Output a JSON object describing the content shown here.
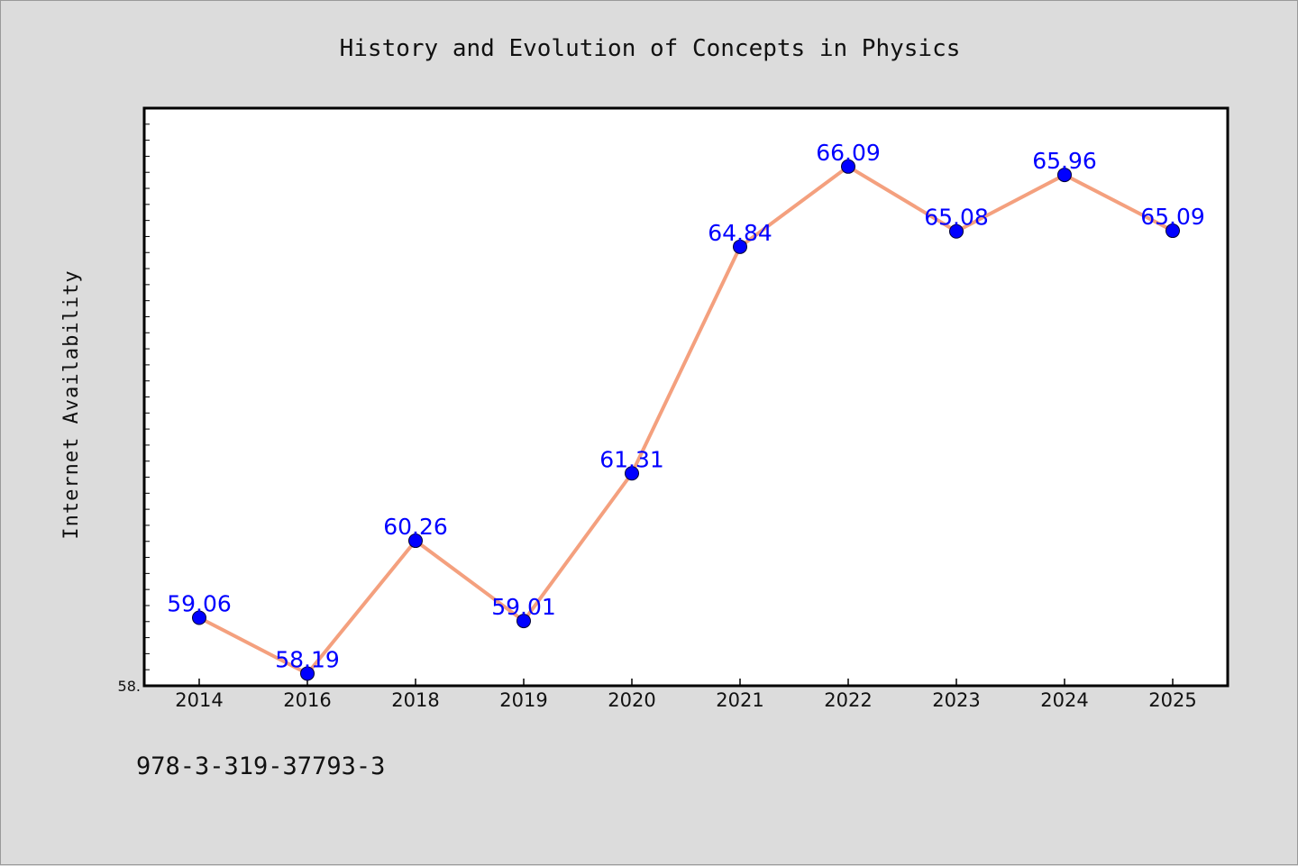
{
  "chart_data": {
    "type": "line",
    "title": "History and Evolution of Concepts in Physics",
    "xlabel": "",
    "ylabel": "Internet Availability",
    "categories": [
      "2014",
      "2016",
      "2018",
      "2019",
      "2020",
      "2021",
      "2022",
      "2023",
      "2024",
      "2025"
    ],
    "series": [
      {
        "values": [
          59.06,
          58.19,
          60.26,
          59.01,
          61.31,
          64.84,
          66.09,
          65.08,
          65.96,
          65.09
        ]
      }
    ],
    "data_labels": [
      "59.06",
      "58.19",
      "60.26",
      "59.01",
      "61.31",
      "64.84",
      "66.09",
      "65.08",
      "65.96",
      "65.09"
    ],
    "ylim": [
      58.0,
      67.0
    ],
    "y_tick_label": "58.",
    "grid": false,
    "legend": "none",
    "colors": {
      "line": "#f4a07e",
      "marker": "#0000ff",
      "label": "#0000ff",
      "plot_bg": "#ffffff",
      "page_bg": "#dcdcdc"
    }
  },
  "footer": {
    "isbn": "978-3-319-37793-3"
  }
}
